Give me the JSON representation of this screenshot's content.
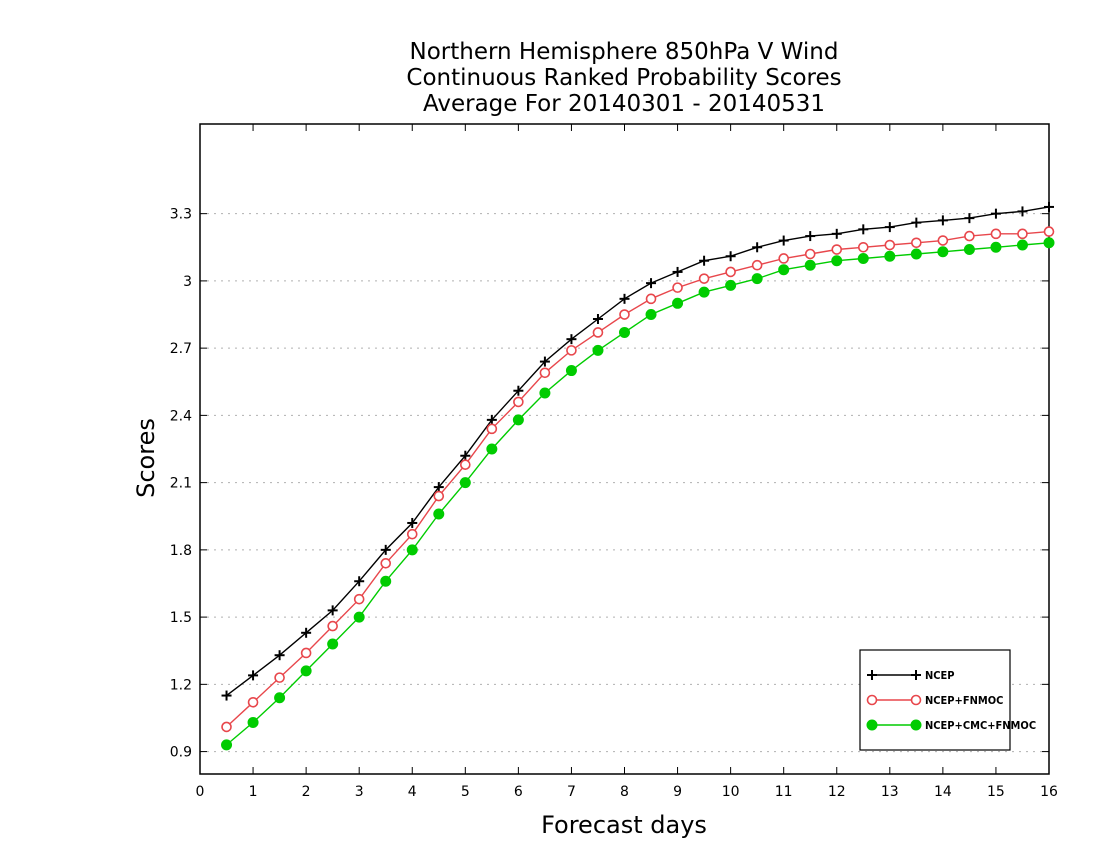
{
  "chart_data": {
    "type": "line",
    "title": [
      "Northern Hemisphere 850hPa V Wind",
      "Continuous Ranked Probability Scores",
      "Average For 20140301 - 20140531"
    ],
    "xlabel": "Forecast days",
    "ylabel": "Scores",
    "xlim": [
      0,
      16
    ],
    "ylim": [
      0.8,
      3.7
    ],
    "x_ticks": [
      0,
      1,
      2,
      3,
      4,
      5,
      6,
      7,
      8,
      9,
      10,
      11,
      12,
      13,
      14,
      15,
      16
    ],
    "y_ticks": [
      0.9,
      1.2,
      1.5,
      1.8,
      2.1,
      2.4,
      2.7,
      3,
      3.3
    ],
    "grid": "horizontal dotted",
    "legend_position": "bottom-right",
    "x": [
      0.5,
      1,
      1.5,
      2,
      2.5,
      3,
      3.5,
      4,
      4.5,
      5,
      5.5,
      6,
      6.5,
      7,
      7.5,
      8,
      8.5,
      9,
      9.5,
      10,
      10.5,
      11,
      11.5,
      12,
      12.5,
      13,
      13.5,
      14,
      14.5,
      15,
      15.5,
      16
    ],
    "series": [
      {
        "name": "NCEP",
        "color": "#000000",
        "marker": "plus",
        "values": [
          1.15,
          1.24,
          1.33,
          1.43,
          1.53,
          1.66,
          1.8,
          1.92,
          2.08,
          2.22,
          2.38,
          2.51,
          2.64,
          2.74,
          2.83,
          2.92,
          2.99,
          3.04,
          3.09,
          3.11,
          3.15,
          3.18,
          3.2,
          3.21,
          3.23,
          3.24,
          3.26,
          3.27,
          3.28,
          3.3,
          3.31,
          3.33
        ]
      },
      {
        "name": "NCEP+FNMOC",
        "color": "#e8474c",
        "marker": "open-circle",
        "values": [
          1.01,
          1.12,
          1.23,
          1.34,
          1.46,
          1.58,
          1.74,
          1.87,
          2.04,
          2.18,
          2.34,
          2.46,
          2.59,
          2.69,
          2.77,
          2.85,
          2.92,
          2.97,
          3.01,
          3.04,
          3.07,
          3.1,
          3.12,
          3.14,
          3.15,
          3.16,
          3.17,
          3.18,
          3.2,
          3.21,
          3.21,
          3.22
        ]
      },
      {
        "name": "NCEP+CMC+FNMOC",
        "color": "#00cc00",
        "marker": "filled-circle",
        "values": [
          0.93,
          1.03,
          1.14,
          1.26,
          1.38,
          1.5,
          1.66,
          1.8,
          1.96,
          2.1,
          2.25,
          2.38,
          2.5,
          2.6,
          2.69,
          2.77,
          2.85,
          2.9,
          2.95,
          2.98,
          3.01,
          3.05,
          3.07,
          3.09,
          3.1,
          3.11,
          3.12,
          3.13,
          3.14,
          3.15,
          3.16,
          3.17
        ]
      }
    ]
  }
}
